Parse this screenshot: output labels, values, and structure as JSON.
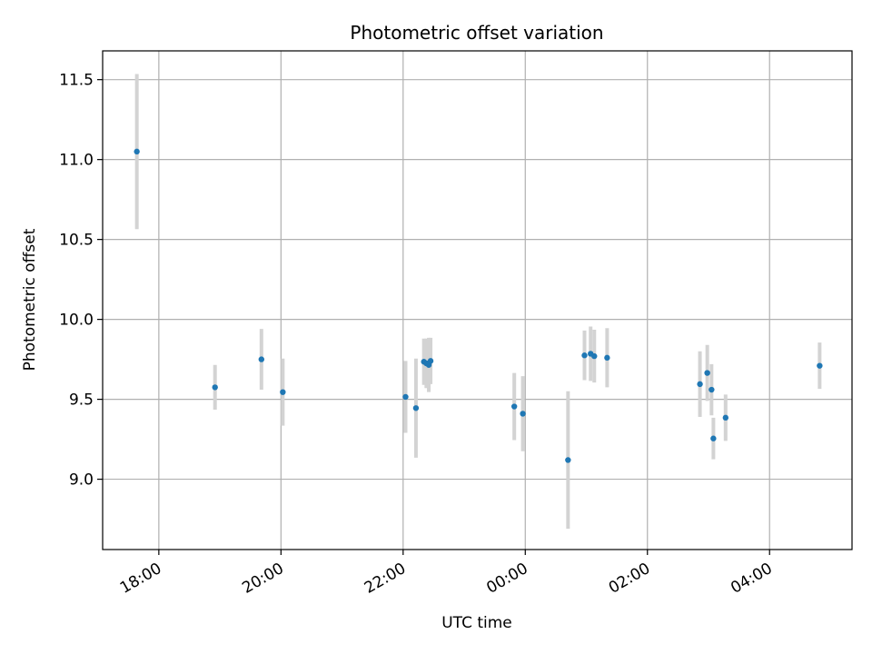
{
  "chart_data": {
    "type": "scatter",
    "title": "Photometric offset variation",
    "xlabel": "UTC time",
    "ylabel": "Photometric offset",
    "x_unit": "hours since 18:00 UTC",
    "xlim": [
      -0.92,
      11.35
    ],
    "ylim": [
      8.56,
      11.68
    ],
    "grid": true,
    "x_ticks": [
      {
        "value": 0,
        "label": "18:00"
      },
      {
        "value": 2,
        "label": "20:00"
      },
      {
        "value": 4,
        "label": "22:00"
      },
      {
        "value": 6,
        "label": "00:00"
      },
      {
        "value": 8,
        "label": "02:00"
      },
      {
        "value": 10,
        "label": "04:00"
      }
    ],
    "y_ticks": [
      {
        "value": 9.0,
        "label": "9.0"
      },
      {
        "value": 9.5,
        "label": "9.5"
      },
      {
        "value": 10.0,
        "label": "10.0"
      },
      {
        "value": 10.5,
        "label": "10.5"
      },
      {
        "value": 11.0,
        "label": "11.0"
      },
      {
        "value": 11.5,
        "label": "11.5"
      }
    ],
    "colors": {
      "point": "#1f77b4",
      "errorbar": "#d3d3d3",
      "grid": "#b0b0b0",
      "frame": "#000000"
    },
    "points": [
      {
        "x": -0.36,
        "y": 11.05,
        "err": 0.485
      },
      {
        "x": 0.92,
        "y": 9.575,
        "err": 0.14
      },
      {
        "x": 1.68,
        "y": 9.75,
        "err": 0.19
      },
      {
        "x": 2.03,
        "y": 9.545,
        "err": 0.21
      },
      {
        "x": 4.04,
        "y": 9.515,
        "err": 0.225
      },
      {
        "x": 4.21,
        "y": 9.445,
        "err": 0.31
      },
      {
        "x": 4.34,
        "y": 9.735,
        "err": 0.145
      },
      {
        "x": 4.38,
        "y": 9.725,
        "err": 0.155
      },
      {
        "x": 4.42,
        "y": 9.715,
        "err": 0.17
      },
      {
        "x": 4.45,
        "y": 9.74,
        "err": 0.145
      },
      {
        "x": 5.82,
        "y": 9.455,
        "err": 0.21
      },
      {
        "x": 5.96,
        "y": 9.41,
        "err": 0.235
      },
      {
        "x": 6.7,
        "y": 9.12,
        "err": 0.43
      },
      {
        "x": 6.97,
        "y": 9.775,
        "err": 0.155
      },
      {
        "x": 7.07,
        "y": 9.785,
        "err": 0.17
      },
      {
        "x": 7.13,
        "y": 9.77,
        "err": 0.165
      },
      {
        "x": 7.34,
        "y": 9.76,
        "err": 0.185
      },
      {
        "x": 8.86,
        "y": 9.595,
        "err": 0.205
      },
      {
        "x": 8.98,
        "y": 9.665,
        "err": 0.175
      },
      {
        "x": 9.05,
        "y": 9.56,
        "err": 0.16
      },
      {
        "x": 9.08,
        "y": 9.255,
        "err": 0.13
      },
      {
        "x": 9.28,
        "y": 9.385,
        "err": 0.145
      },
      {
        "x": 10.82,
        "y": 9.71,
        "err": 0.145
      }
    ]
  }
}
